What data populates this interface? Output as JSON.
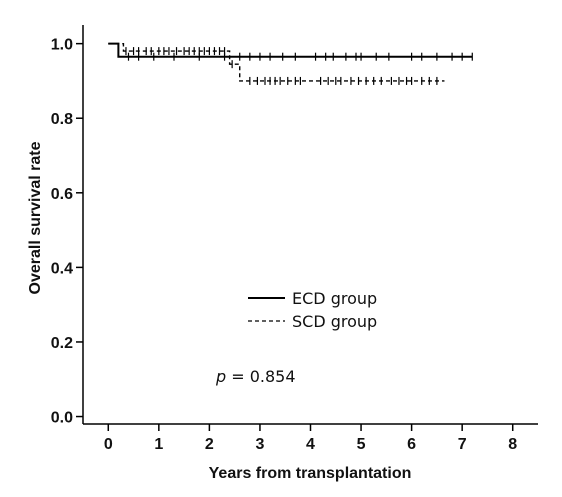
{
  "chart_data": {
    "type": "line",
    "xlabel": "Years from transplantation",
    "ylabel": "Overall survival rate",
    "xlim": [
      -0.5,
      8.5
    ],
    "ylim": [
      -0.02,
      1.05
    ],
    "xticks": [
      "0",
      "1",
      "2",
      "3",
      "4",
      "5",
      "6",
      "7",
      "8"
    ],
    "yticks": [
      "0.0",
      "0.2",
      "0.4",
      "0.6",
      "0.8",
      "1.0"
    ],
    "grid": false,
    "legend_position": "center-right",
    "annotation": {
      "italic": "p",
      "text": " = 0.854"
    },
    "series": [
      {
        "name": "ECD group",
        "style": "solid",
        "color": "#000000",
        "steps": [
          [
            0,
            1.0
          ],
          [
            0.2,
            0.965
          ],
          [
            7.2,
            0.965
          ]
        ],
        "censors": [
          0.4,
          0.6,
          0.9,
          1.3,
          1.8,
          2.3,
          2.6,
          2.8,
          3.0,
          3.2,
          3.45,
          3.7,
          4.1,
          4.3,
          4.45,
          4.7,
          4.9,
          5.0,
          5.3,
          5.55,
          6.0,
          6.2,
          6.5,
          6.8,
          7.0,
          7.2
        ]
      },
      {
        "name": "SCD group",
        "style": "dashed",
        "color": "#000000",
        "steps": [
          [
            0,
            1.0
          ],
          [
            0.3,
            0.98
          ],
          [
            2.4,
            0.945
          ],
          [
            2.6,
            0.9
          ],
          [
            6.65,
            0.9
          ]
        ],
        "censors": [
          0.35,
          0.5,
          0.6,
          0.75,
          0.85,
          1.0,
          1.1,
          1.2,
          1.35,
          1.5,
          1.6,
          1.7,
          1.8,
          1.9,
          2.0,
          2.1,
          2.2,
          2.3,
          2.45,
          2.8,
          2.95,
          3.1,
          3.2,
          3.3,
          3.4,
          3.55,
          3.7,
          3.8,
          4.2,
          4.35,
          4.5,
          4.6,
          4.8,
          4.95,
          5.1,
          5.25,
          5.4,
          5.6,
          5.75,
          5.9,
          6.0,
          6.2,
          6.35,
          6.5
        ]
      }
    ]
  }
}
